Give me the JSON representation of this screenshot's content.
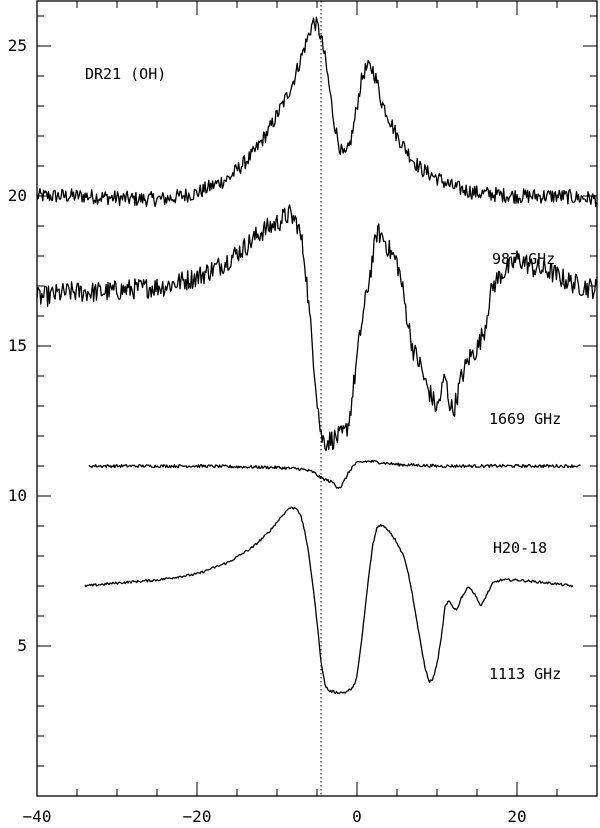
{
  "chart_data": {
    "type": "line",
    "title": "DR21 (OH)",
    "xlabel": "",
    "ylabel": "",
    "xlim": [
      -40,
      30
    ],
    "ylim": [
      0,
      26.5
    ],
    "x_ticks": [
      -40,
      -20,
      0,
      20
    ],
    "x_tick_labels": [
      "−40",
      "−20",
      "0",
      "20"
    ],
    "y_ticks": [
      5,
      10,
      15,
      20,
      25
    ],
    "y_tick_labels": [
      "5",
      "10",
      "15",
      "20",
      "25"
    ],
    "reference_line": {
      "x": -4.5,
      "style": "dotted"
    },
    "grid": false,
    "series": [
      {
        "name": "987 GHz",
        "noise": 0.25,
        "points": [
          [
            -40,
            20.0
          ],
          [
            -34,
            20.0
          ],
          [
            -28,
            19.9
          ],
          [
            -24,
            19.9
          ],
          [
            -20,
            20.1
          ],
          [
            -16,
            20.6
          ],
          [
            -13,
            21.4
          ],
          [
            -11,
            22.2
          ],
          [
            -9,
            23.2
          ],
          [
            -8,
            23.8
          ],
          [
            -7,
            24.6
          ],
          [
            -6,
            25.4
          ],
          [
            -5.5,
            25.8
          ],
          [
            -5,
            25.7
          ],
          [
            -4.5,
            25.3
          ],
          [
            -4,
            24.6
          ],
          [
            -3.5,
            23.7
          ],
          [
            -3,
            22.7
          ],
          [
            -2.5,
            22.0
          ],
          [
            -2,
            21.5
          ],
          [
            -1.5,
            21.3
          ],
          [
            -1,
            21.6
          ],
          [
            -0.5,
            22.2
          ],
          [
            0,
            23.0
          ],
          [
            0.5,
            23.8
          ],
          [
            1,
            24.2
          ],
          [
            1.5,
            24.3
          ],
          [
            2,
            24.2
          ],
          [
            2.5,
            23.8
          ],
          [
            3,
            23.2
          ],
          [
            4,
            22.6
          ],
          [
            5,
            22.0
          ],
          [
            6,
            21.6
          ],
          [
            7,
            21.2
          ],
          [
            8,
            20.9
          ],
          [
            10,
            20.6
          ],
          [
            12,
            20.3
          ],
          [
            15,
            20.1
          ],
          [
            20,
            20.0
          ],
          [
            25,
            20.0
          ],
          [
            30,
            19.9
          ]
        ]
      },
      {
        "name": "1669 GHz",
        "noise": 0.35,
        "points": [
          [
            -40,
            16.6
          ],
          [
            -36,
            16.8
          ],
          [
            -32,
            16.8
          ],
          [
            -28,
            16.9
          ],
          [
            -24,
            17.0
          ],
          [
            -20,
            17.3
          ],
          [
            -17,
            17.7
          ],
          [
            -14,
            18.3
          ],
          [
            -12,
            18.8
          ],
          [
            -10,
            19.1
          ],
          [
            -8.5,
            19.4
          ],
          [
            -7.5,
            19.1
          ],
          [
            -7,
            18.6
          ],
          [
            -6.5,
            17.8
          ],
          [
            -6,
            16.2
          ],
          [
            -5.5,
            14.8
          ],
          [
            -5,
            13.3
          ],
          [
            -4.5,
            12.0
          ],
          [
            -4,
            11.8
          ],
          [
            -3,
            11.9
          ],
          [
            -2,
            12.0
          ],
          [
            -1.5,
            12.1
          ],
          [
            -1,
            12.5
          ],
          [
            -0.5,
            13.5
          ],
          [
            0,
            14.6
          ],
          [
            0.5,
            15.6
          ],
          [
            1,
            16.4
          ],
          [
            1.5,
            17.2
          ],
          [
            2,
            18.0
          ],
          [
            2.5,
            18.8
          ],
          [
            3,
            18.7
          ],
          [
            3.5,
            18.5
          ],
          [
            4,
            18.2
          ],
          [
            5,
            17.8
          ],
          [
            5.5,
            17.2
          ],
          [
            6,
            16.4
          ],
          [
            6.5,
            15.6
          ],
          [
            7,
            14.9
          ],
          [
            8,
            14.3
          ],
          [
            8.5,
            13.8
          ],
          [
            9,
            13.5
          ],
          [
            9.5,
            13.2
          ],
          [
            10,
            12.9
          ],
          [
            10.5,
            13.4
          ],
          [
            11,
            14.0
          ],
          [
            11.5,
            13.2
          ],
          [
            12,
            12.8
          ],
          [
            12.5,
            13.3
          ],
          [
            13,
            13.9
          ],
          [
            14,
            14.6
          ],
          [
            15,
            14.9
          ],
          [
            16,
            15.6
          ],
          [
            16.5,
            16.5
          ],
          [
            17,
            17.0
          ],
          [
            18,
            17.4
          ],
          [
            19,
            17.6
          ],
          [
            20,
            17.9
          ],
          [
            21,
            17.8
          ],
          [
            22,
            17.6
          ],
          [
            24,
            17.5
          ],
          [
            26,
            17.2
          ],
          [
            28,
            17.0
          ],
          [
            30,
            16.9
          ]
        ]
      },
      {
        "name": "H20-18",
        "noise": 0.05,
        "points": [
          [
            -33.5,
            11.0
          ],
          [
            -20,
            11.0
          ],
          [
            -10,
            10.95
          ],
          [
            -7,
            10.9
          ],
          [
            -5.5,
            10.8
          ],
          [
            -4.5,
            10.6
          ],
          [
            -3.5,
            10.5
          ],
          [
            -3,
            10.45
          ],
          [
            -2.5,
            10.3
          ],
          [
            -2,
            10.3
          ],
          [
            -1.5,
            10.55
          ],
          [
            -1,
            10.8
          ],
          [
            -0.5,
            11.0
          ],
          [
            0,
            11.1
          ],
          [
            1,
            11.15
          ],
          [
            2,
            11.15
          ],
          [
            5,
            11.05
          ],
          [
            10,
            11.0
          ],
          [
            20,
            11.0
          ],
          [
            28,
            11.0
          ]
        ]
      },
      {
        "name": "1113 GHz",
        "noise": 0.04,
        "points": [
          [
            -34,
            7.0
          ],
          [
            -30,
            7.1
          ],
          [
            -25,
            7.2
          ],
          [
            -20,
            7.4
          ],
          [
            -16,
            7.8
          ],
          [
            -13,
            8.3
          ],
          [
            -11,
            8.8
          ],
          [
            -9.5,
            9.3
          ],
          [
            -8.5,
            9.6
          ],
          [
            -7.5,
            9.6
          ],
          [
            -7,
            9.3
          ],
          [
            -6.5,
            8.8
          ],
          [
            -6,
            8.0
          ],
          [
            -5.5,
            7.0
          ],
          [
            -5,
            5.8
          ],
          [
            -4.5,
            4.5
          ],
          [
            -4,
            3.7
          ],
          [
            -3.5,
            3.5
          ],
          [
            -2.5,
            3.45
          ],
          [
            -1.5,
            3.45
          ],
          [
            -0.5,
            3.6
          ],
          [
            0,
            4.0
          ],
          [
            0.5,
            5.0
          ],
          [
            1,
            6.2
          ],
          [
            1.5,
            7.4
          ],
          [
            2,
            8.4
          ],
          [
            2.5,
            8.95
          ],
          [
            3,
            9.05
          ],
          [
            4,
            8.85
          ],
          [
            5,
            8.45
          ],
          [
            6,
            7.9
          ],
          [
            6.5,
            7.3
          ],
          [
            7,
            6.6
          ],
          [
            7.5,
            5.8
          ],
          [
            8,
            5.0
          ],
          [
            8.5,
            4.3
          ],
          [
            9,
            3.8
          ],
          [
            9.5,
            3.9
          ],
          [
            10,
            4.4
          ],
          [
            10.5,
            5.2
          ],
          [
            11,
            6.3
          ],
          [
            11.5,
            6.5
          ],
          [
            12,
            6.3
          ],
          [
            12.5,
            6.2
          ],
          [
            13,
            6.6
          ],
          [
            14,
            7.0
          ],
          [
            15,
            6.6
          ],
          [
            15.5,
            6.3
          ],
          [
            16,
            6.6
          ],
          [
            17,
            7.1
          ],
          [
            18,
            7.2
          ],
          [
            20,
            7.2
          ],
          [
            24,
            7.1
          ],
          [
            27,
            7.0
          ]
        ]
      }
    ]
  }
}
